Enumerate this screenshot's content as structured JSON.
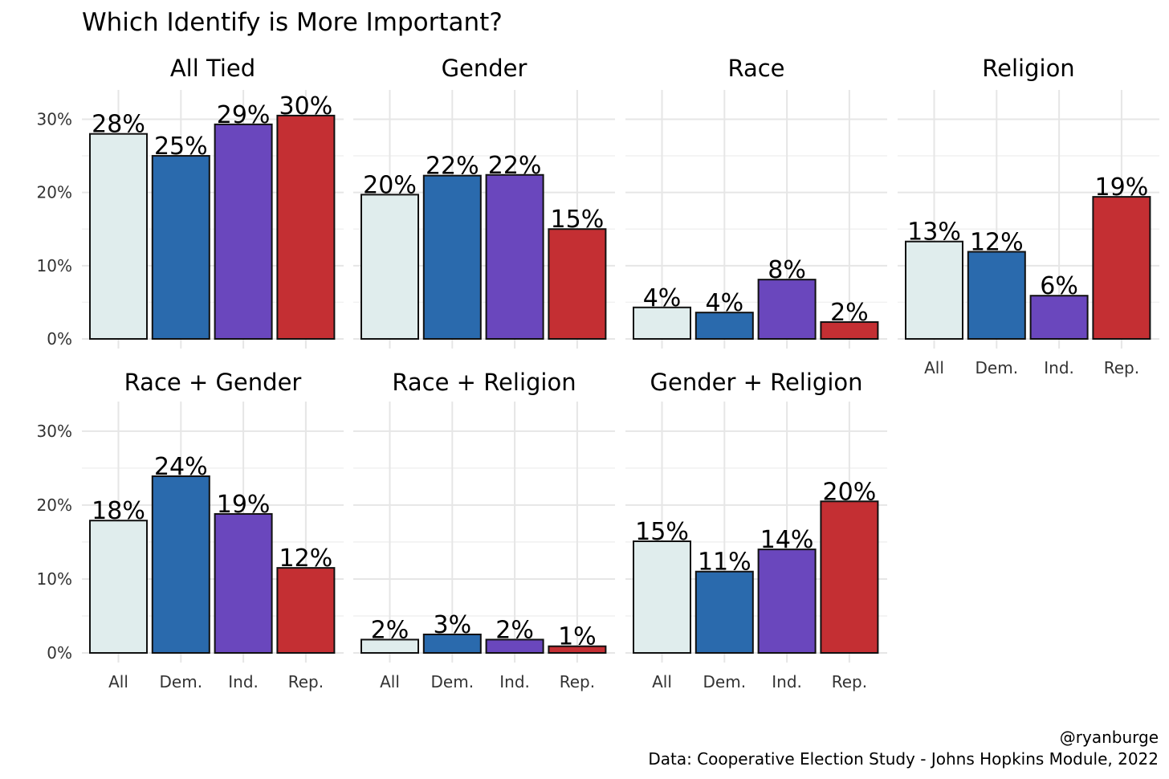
{
  "title": "Which Identify is More Important?",
  "caption": {
    "author": "@ryanburge",
    "source": "Data: Cooperative Election Study - Johns Hopkins Module, 2022"
  },
  "colors": {
    "All": "#e0eded",
    "Dem.": "#2a6aad",
    "Ind.": "#6a47bd",
    "Rep.": "#c42f33"
  },
  "chart_data": {
    "type": "bar",
    "facets": true,
    "categories": [
      "All",
      "Dem.",
      "Ind.",
      "Rep."
    ],
    "y_ticks": [
      "0%",
      "10%",
      "20%",
      "30%"
    ],
    "ylim": [
      0,
      0.34
    ],
    "panels": [
      {
        "name": "All Tied",
        "values": [
          0.28,
          0.25,
          0.293,
          0.305
        ],
        "labels": [
          "28%",
          "25%",
          "29%",
          "30%"
        ]
      },
      {
        "name": "Gender",
        "values": [
          0.197,
          0.223,
          0.224,
          0.15
        ],
        "labels": [
          "20%",
          "22%",
          "22%",
          "15%"
        ]
      },
      {
        "name": "Race",
        "values": [
          0.043,
          0.036,
          0.081,
          0.023
        ],
        "labels": [
          "4%",
          "4%",
          "8%",
          "2%"
        ]
      },
      {
        "name": "Religion",
        "values": [
          0.133,
          0.119,
          0.059,
          0.194
        ],
        "labels": [
          "13%",
          "12%",
          "6%",
          "19%"
        ]
      },
      {
        "name": "Race + Gender",
        "values": [
          0.179,
          0.239,
          0.188,
          0.115
        ],
        "labels": [
          "18%",
          "24%",
          "19%",
          "12%"
        ]
      },
      {
        "name": "Race + Religion",
        "values": [
          0.018,
          0.025,
          0.018,
          0.009
        ],
        "labels": [
          "2%",
          "3%",
          "2%",
          "1%"
        ]
      },
      {
        "name": "Gender + Religion",
        "values": [
          0.151,
          0.11,
          0.14,
          0.205
        ],
        "labels": [
          "15%",
          "11%",
          "14%",
          "20%"
        ]
      }
    ]
  }
}
